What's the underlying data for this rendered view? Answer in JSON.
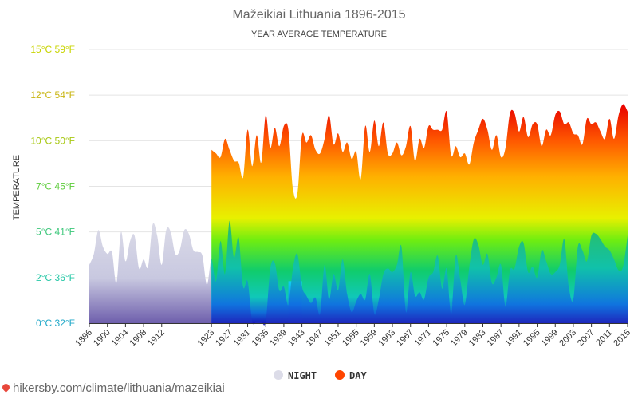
{
  "chart_data": {
    "type": "area",
    "title": "Mažeikiai Lithuania 1896-2015",
    "subtitle": "YEAR AVERAGE TEMPERATURE",
    "ylabel": "TEMPERATURE",
    "x_start": 1896,
    "x_end": 2015,
    "ylim": [
      0,
      15
    ],
    "yticks": [
      {
        "value": 0,
        "label": "0°C 32°F",
        "color": "#20a8c8"
      },
      {
        "value": 2.5,
        "label": "2°C 36°F",
        "color": "#26c7a6"
      },
      {
        "value": 5,
        "label": "5°C 41°F",
        "color": "#3cc77a"
      },
      {
        "value": 7.5,
        "label": "7°C 45°F",
        "color": "#5ccc3a"
      },
      {
        "value": 10,
        "label": "10°C 50°F",
        "color": "#a8c814"
      },
      {
        "value": 12.5,
        "label": "12°C 54°F",
        "color": "#c8b410"
      },
      {
        "value": 15,
        "label": "15°C 59°F",
        "color": "#c8d400"
      }
    ],
    "xticks": [
      "1896",
      "1900",
      "1904",
      "1908",
      "1912",
      "1923",
      "1927",
      "1931",
      "1935",
      "1939",
      "1943",
      "1947",
      "1951",
      "1955",
      "1959",
      "1963",
      "1967",
      "1971",
      "1975",
      "1979",
      "1983",
      "1987",
      "1991",
      "1995",
      "1999",
      "2003",
      "2007",
      "2011",
      "2015"
    ],
    "grid": true,
    "legend_position": "bottom-center",
    "series": [
      {
        "name": "NIGHT",
        "color": "#dcdce8",
        "x": [
          1896,
          1897,
          1898,
          1899,
          1900,
          1901,
          1902,
          1903,
          1904,
          1905,
          1906,
          1907,
          1908,
          1909,
          1910,
          1911,
          1912,
          1913,
          1914,
          1915,
          1916,
          1917,
          1918,
          1919,
          1920,
          1921,
          1922,
          1923,
          1924,
          1925,
          1926,
          1927,
          1928,
          1929,
          1930,
          1931,
          1932,
          1933,
          1934,
          1935,
          1936,
          1937,
          1938,
          1939,
          1940,
          1941,
          1942,
          1943,
          1944,
          1945,
          1946,
          1947,
          1948,
          1949,
          1950,
          1951,
          1952,
          1953,
          1954,
          1955,
          1956,
          1957,
          1958,
          1959,
          1960,
          1961,
          1962,
          1963,
          1964,
          1965,
          1966,
          1967,
          1968,
          1969,
          1970,
          1971,
          1972,
          1973,
          1974,
          1975,
          1976,
          1977,
          1978,
          1979,
          1980,
          1981,
          1982,
          1983,
          1984,
          1985,
          1986,
          1987,
          1988,
          1989,
          1990,
          1991,
          1992,
          1993,
          1994,
          1995,
          1996,
          1997,
          1998,
          1999,
          2000,
          2001,
          2002,
          2003,
          2004,
          2005,
          2006,
          2007,
          2008,
          2009,
          2010,
          2011,
          2012,
          2013,
          2014,
          2015
        ],
        "values": [
          3.2,
          3.8,
          5.1,
          4.2,
          3.8,
          3.9,
          2.2,
          5.0,
          3.4,
          4.5,
          4.8,
          3.0,
          3.5,
          3.1,
          5.4,
          4.8,
          3.2,
          5.1,
          5.0,
          3.8,
          4.0,
          5.1,
          4.9,
          4.0,
          3.9,
          3.7,
          2.1,
          3.5,
          2.3,
          4.5,
          2.7,
          5.6,
          3.6,
          4.7,
          2.0,
          2.3,
          0.1,
          0.1,
          0.1,
          0.1,
          3.0,
          3.3,
          1.8,
          2.0,
          1.0,
          3.0,
          3.8,
          2.0,
          1.5,
          1.1,
          1.4,
          0.5,
          3.2,
          1.3,
          2.7,
          1.8,
          3.5,
          1.6,
          0.6,
          1.2,
          1.6,
          1.3,
          2.7,
          0.5,
          1.3,
          2.7,
          3.0,
          2.8,
          3.2,
          4.2,
          0.6,
          2.8,
          1.5,
          1.7,
          1.3,
          2.5,
          2.8,
          3.7,
          1.9,
          3.0,
          0.5,
          3.7,
          2.4,
          1.0,
          3.1,
          4.6,
          4.3,
          3.2,
          3.8,
          2.2,
          2.5,
          3.2,
          0.9,
          2.9,
          3.0,
          4.2,
          4.4,
          2.8,
          3.1,
          2.5,
          4.0,
          3.4,
          2.7,
          2.8,
          3.2,
          4.6,
          2.0,
          1.3,
          4.2,
          4.0,
          3.4,
          4.8,
          4.9,
          4.6,
          4.2,
          4.0,
          3.5,
          2.9,
          3.1,
          4.8
        ]
      },
      {
        "name": "DAY",
        "color": "#ff4500",
        "x": [
          1923,
          1924,
          1925,
          1926,
          1927,
          1928,
          1929,
          1930,
          1931,
          1932,
          1933,
          1934,
          1935,
          1936,
          1937,
          1938,
          1939,
          1940,
          1941,
          1942,
          1943,
          1944,
          1945,
          1946,
          1947,
          1948,
          1949,
          1950,
          1951,
          1952,
          1953,
          1954,
          1955,
          1956,
          1957,
          1958,
          1959,
          1960,
          1961,
          1962,
          1963,
          1964,
          1965,
          1966,
          1967,
          1968,
          1969,
          1970,
          1971,
          1972,
          1973,
          1974,
          1975,
          1976,
          1977,
          1978,
          1979,
          1980,
          1981,
          1982,
          1983,
          1984,
          1985,
          1986,
          1987,
          1988,
          1989,
          1990,
          1991,
          1992,
          1993,
          1994,
          1995,
          1996,
          1997,
          1998,
          1999,
          2000,
          2001,
          2002,
          2003,
          2004,
          2005,
          2006,
          2007,
          2008,
          2009,
          2010,
          2011,
          2012,
          2013,
          2014,
          2015
        ],
        "values": [
          9.5,
          9.3,
          9.1,
          10.1,
          9.5,
          8.9,
          8.8,
          8.0,
          10.6,
          8.6,
          10.3,
          8.8,
          11.4,
          9.6,
          10.7,
          9.7,
          10.8,
          10.6,
          7.4,
          7.1,
          10.3,
          9.9,
          10.3,
          9.5,
          9.3,
          10.1,
          11.4,
          9.8,
          10.4,
          9.4,
          9.9,
          9.0,
          9.4,
          7.9,
          10.8,
          9.4,
          11.1,
          9.7,
          11.0,
          9.3,
          9.3,
          9.9,
          9.2,
          9.7,
          10.8,
          8.9,
          10.1,
          9.6,
          10.8,
          10.6,
          10.6,
          10.6,
          11.6,
          9.2,
          9.7,
          9.1,
          9.3,
          8.7,
          9.9,
          10.6,
          11.2,
          10.6,
          9.5,
          10.3,
          9.1,
          9.6,
          11.5,
          11.5,
          10.5,
          11.3,
          10.2,
          10.9,
          10.9,
          9.7,
          10.6,
          10.3,
          11.4,
          11.6,
          10.9,
          11.0,
          10.4,
          10.3,
          9.8,
          11.2,
          10.9,
          11.0,
          10.5,
          10.1,
          11.2,
          10.1,
          11.4,
          12.0,
          11.6
        ]
      }
    ]
  },
  "legend": [
    {
      "label": "NIGHT",
      "color": "#dcdce8"
    },
    {
      "label": "DAY",
      "color": "#ff4500"
    }
  ],
  "footer": {
    "text": "hikersby.com/climate/lithuania/mazeikiai"
  }
}
